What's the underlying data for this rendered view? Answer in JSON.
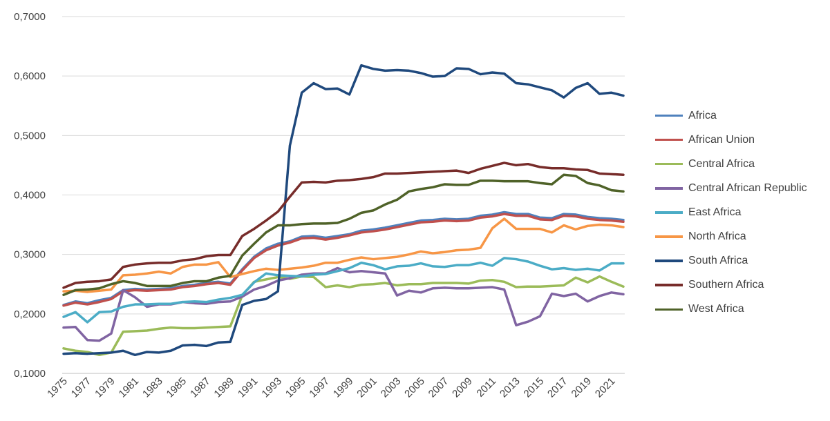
{
  "chart_data": {
    "type": "line",
    "title": "",
    "xlabel": "",
    "ylabel": "",
    "ylim": [
      0.1,
      0.7
    ],
    "y_ticks": [
      "0,1000",
      "0,2000",
      "0,3000",
      "0,4000",
      "0,5000",
      "0,6000",
      "0,7000"
    ],
    "x_tick_labels": [
      "1975",
      "1977",
      "1979",
      "1981",
      "1983",
      "1985",
      "1987",
      "1989",
      "1991",
      "1993",
      "1995",
      "1997",
      "1999",
      "2001",
      "2003",
      "2005",
      "2007",
      "2009",
      "2011",
      "2013",
      "2015",
      "2017",
      "2019",
      "2021"
    ],
    "legend_position": "right",
    "grid": "horizontal",
    "x": [
      1975,
      1976,
      1977,
      1978,
      1979,
      1980,
      1981,
      1982,
      1983,
      1984,
      1985,
      1986,
      1987,
      1988,
      1989,
      1990,
      1991,
      1992,
      1993,
      1994,
      1995,
      1996,
      1997,
      1998,
      1999,
      2000,
      2001,
      2002,
      2003,
      2004,
      2005,
      2006,
      2007,
      2008,
      2009,
      2010,
      2011,
      2012,
      2013,
      2014,
      2015,
      2016,
      2017,
      2018,
      2019,
      2020,
      2021,
      2022
    ],
    "series": [
      {
        "name": "Africa",
        "color": "#4F81BD",
        "values": [
          0.215,
          0.221,
          0.218,
          0.223,
          0.227,
          0.24,
          0.242,
          0.241,
          0.242,
          0.243,
          0.247,
          0.249,
          0.252,
          0.254,
          0.251,
          0.275,
          0.296,
          0.31,
          0.318,
          0.322,
          0.33,
          0.331,
          0.328,
          0.331,
          0.334,
          0.34,
          0.342,
          0.345,
          0.349,
          0.353,
          0.357,
          0.358,
          0.36,
          0.359,
          0.36,
          0.365,
          0.367,
          0.371,
          0.368,
          0.368,
          0.362,
          0.361,
          0.368,
          0.367,
          0.363,
          0.361,
          0.36,
          0.358
        ]
      },
      {
        "name": "African Union",
        "color": "#C0504D",
        "values": [
          0.214,
          0.219,
          0.216,
          0.22,
          0.225,
          0.238,
          0.24,
          0.239,
          0.24,
          0.241,
          0.245,
          0.247,
          0.25,
          0.252,
          0.249,
          0.273,
          0.294,
          0.307,
          0.315,
          0.32,
          0.327,
          0.328,
          0.325,
          0.328,
          0.332,
          0.337,
          0.339,
          0.342,
          0.346,
          0.35,
          0.354,
          0.355,
          0.357,
          0.356,
          0.357,
          0.362,
          0.364,
          0.368,
          0.365,
          0.365,
          0.359,
          0.358,
          0.365,
          0.364,
          0.36,
          0.358,
          0.357,
          0.355
        ]
      },
      {
        "name": "Central Africa",
        "color": "#9BBB59",
        "values": [
          0.142,
          0.138,
          0.136,
          0.131,
          0.135,
          0.17,
          0.171,
          0.172,
          0.175,
          0.177,
          0.176,
          0.176,
          0.177,
          0.178,
          0.179,
          0.231,
          0.254,
          0.258,
          0.262,
          0.259,
          0.263,
          0.262,
          0.245,
          0.248,
          0.245,
          0.249,
          0.25,
          0.252,
          0.248,
          0.25,
          0.25,
          0.252,
          0.252,
          0.252,
          0.251,
          0.256,
          0.257,
          0.254,
          0.245,
          0.246,
          0.246,
          0.247,
          0.248,
          0.261,
          0.253,
          0.263,
          0.254,
          0.246
        ]
      },
      {
        "name": "Central African Republic",
        "color": "#8064A2",
        "values": [
          0.177,
          0.178,
          0.156,
          0.155,
          0.167,
          0.24,
          0.228,
          0.212,
          0.216,
          0.216,
          0.22,
          0.218,
          0.217,
          0.22,
          0.221,
          0.229,
          0.241,
          0.247,
          0.256,
          0.26,
          0.266,
          0.268,
          0.268,
          0.277,
          0.27,
          0.272,
          0.27,
          0.268,
          0.231,
          0.239,
          0.236,
          0.243,
          0.244,
          0.243,
          0.243,
          0.244,
          0.245,
          0.241,
          0.181,
          0.187,
          0.196,
          0.234,
          0.23,
          0.234,
          0.221,
          0.23,
          0.236,
          0.233
        ]
      },
      {
        "name": "East Africa",
        "color": "#4BACC6",
        "values": [
          0.195,
          0.203,
          0.186,
          0.203,
          0.204,
          0.212,
          0.216,
          0.216,
          0.217,
          0.217,
          0.22,
          0.221,
          0.22,
          0.224,
          0.227,
          0.232,
          0.253,
          0.268,
          0.265,
          0.264,
          0.263,
          0.266,
          0.267,
          0.272,
          0.277,
          0.286,
          0.282,
          0.275,
          0.28,
          0.281,
          0.285,
          0.28,
          0.279,
          0.282,
          0.282,
          0.286,
          0.281,
          0.294,
          0.292,
          0.288,
          0.281,
          0.275,
          0.277,
          0.274,
          0.276,
          0.273,
          0.285,
          0.285
        ]
      },
      {
        "name": "North Africa",
        "color": "#F79646",
        "values": [
          0.238,
          0.239,
          0.237,
          0.239,
          0.241,
          0.265,
          0.266,
          0.268,
          0.271,
          0.268,
          0.279,
          0.283,
          0.283,
          0.287,
          0.262,
          0.267,
          0.272,
          0.276,
          0.274,
          0.276,
          0.278,
          0.281,
          0.286,
          0.286,
          0.291,
          0.295,
          0.292,
          0.294,
          0.296,
          0.3,
          0.305,
          0.302,
          0.304,
          0.307,
          0.308,
          0.311,
          0.344,
          0.36,
          0.343,
          0.343,
          0.343,
          0.337,
          0.349,
          0.342,
          0.348,
          0.35,
          0.349,
          0.346
        ]
      },
      {
        "name": "South Africa",
        "color": "#1F497D",
        "values": [
          0.133,
          0.134,
          0.133,
          0.134,
          0.135,
          0.138,
          0.131,
          0.136,
          0.135,
          0.138,
          0.147,
          0.148,
          0.146,
          0.152,
          0.153,
          0.215,
          0.222,
          0.225,
          0.238,
          0.483,
          0.572,
          0.588,
          0.578,
          0.579,
          0.569,
          0.618,
          0.612,
          0.609,
          0.61,
          0.609,
          0.605,
          0.599,
          0.6,
          0.613,
          0.612,
          0.603,
          0.606,
          0.604,
          0.588,
          0.586,
          0.581,
          0.576,
          0.564,
          0.58,
          0.588,
          0.57,
          0.572,
          0.567
        ]
      },
      {
        "name": "Southern Africa",
        "color": "#772C2A",
        "values": [
          0.244,
          0.252,
          0.254,
          0.255,
          0.258,
          0.279,
          0.283,
          0.285,
          0.286,
          0.286,
          0.29,
          0.292,
          0.297,
          0.299,
          0.299,
          0.331,
          0.343,
          0.357,
          0.372,
          0.397,
          0.421,
          0.422,
          0.421,
          0.424,
          0.425,
          0.427,
          0.43,
          0.436,
          0.436,
          0.437,
          0.438,
          0.439,
          0.44,
          0.441,
          0.437,
          0.444,
          0.449,
          0.454,
          0.45,
          0.452,
          0.447,
          0.445,
          0.445,
          0.443,
          0.442,
          0.436,
          0.435,
          0.434
        ]
      },
      {
        "name": "West Africa",
        "color": "#4F6228",
        "values": [
          0.232,
          0.24,
          0.241,
          0.243,
          0.25,
          0.255,
          0.252,
          0.247,
          0.247,
          0.247,
          0.252,
          0.255,
          0.255,
          0.261,
          0.264,
          0.298,
          0.318,
          0.337,
          0.349,
          0.349,
          0.351,
          0.352,
          0.352,
          0.353,
          0.36,
          0.37,
          0.374,
          0.384,
          0.392,
          0.406,
          0.41,
          0.413,
          0.418,
          0.417,
          0.417,
          0.424,
          0.424,
          0.423,
          0.423,
          0.423,
          0.42,
          0.418,
          0.434,
          0.432,
          0.42,
          0.416,
          0.408,
          0.406
        ]
      }
    ]
  }
}
